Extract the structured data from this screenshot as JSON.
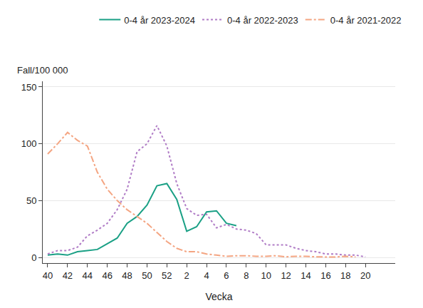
{
  "chart_data": {
    "type": "line",
    "xlabel": "Vecka",
    "ylabel": "Fall/100 000",
    "categories": [
      "40",
      null,
      "42",
      null,
      "44",
      null,
      "46",
      null,
      "48",
      null,
      "50",
      null,
      "52",
      null,
      "2",
      null,
      "4",
      null,
      "6",
      null,
      "8",
      null,
      "10",
      null,
      "12",
      null,
      "14",
      null,
      "16",
      null,
      "18",
      null,
      "20",
      null,
      null,
      null
    ],
    "series": [
      {
        "name": "0-4 år 2023-2024",
        "color": "#1aa085",
        "line_style": "solid",
        "values": [
          2,
          3,
          2,
          5,
          6,
          7,
          12,
          17,
          30,
          36,
          46,
          63,
          65,
          51,
          23,
          27,
          40,
          41,
          30,
          28,
          null,
          null,
          null,
          null,
          null,
          null,
          null,
          null,
          null,
          null,
          null,
          null,
          null,
          null,
          null,
          null
        ]
      },
      {
        "name": "0-4 år 2022-2023",
        "color": "#b07cc6",
        "line_style": "dot",
        "values": [
          3,
          6,
          6,
          9,
          19,
          24,
          30,
          42,
          60,
          93,
          100,
          116,
          98,
          65,
          43,
          37,
          38,
          26,
          29,
          25,
          24,
          21,
          11,
          11,
          11,
          8,
          6,
          5,
          3,
          3,
          2,
          2,
          0.5,
          null,
          null,
          null
        ]
      },
      {
        "name": "0-4 år 2021-2022",
        "color": "#f4a582",
        "line_style": "dashdot",
        "values": [
          91,
          100,
          110,
          103,
          98,
          75,
          60,
          50,
          42,
          36,
          30,
          22,
          14,
          8,
          5,
          5,
          3,
          2,
          1,
          1.5,
          1.5,
          1,
          1,
          1.5,
          0.5,
          1,
          1,
          0.5,
          0.5,
          0.3,
          1,
          0.5,
          null,
          null,
          null,
          null
        ]
      }
    ],
    "ylim": [
      -5,
      155
    ],
    "yticks": [
      0,
      50,
      100,
      150
    ],
    "grid": true,
    "legend": "top"
  }
}
